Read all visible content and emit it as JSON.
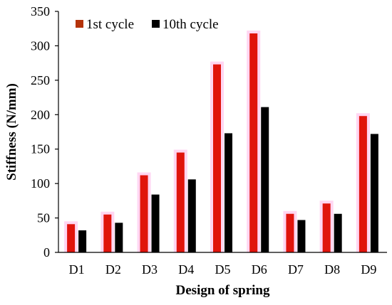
{
  "chart_data": {
    "type": "bar",
    "title": "",
    "xlabel": "Design of spring",
    "ylabel": "Stiffness (N/mm)",
    "categories": [
      "D1",
      "D2",
      "D3",
      "D4",
      "D5",
      "D6",
      "D7",
      "D8",
      "D9"
    ],
    "series": [
      {
        "name": "1st cycle",
        "color": "#e0140c",
        "values": [
          41,
          55,
          112,
          145,
          273,
          318,
          56,
          71,
          198
        ]
      },
      {
        "name": "10th cycle",
        "color": "#000000",
        "values": [
          32,
          43,
          84,
          106,
          173,
          211,
          47,
          56,
          172
        ]
      }
    ],
    "ylim": [
      0,
      350
    ],
    "yticks": [
      "0",
      "50",
      "100",
      "150",
      "200",
      "250",
      "300",
      "350"
    ],
    "grid": false,
    "legend_position": "top-left",
    "bar_glow_color": "#ffd6f2"
  }
}
